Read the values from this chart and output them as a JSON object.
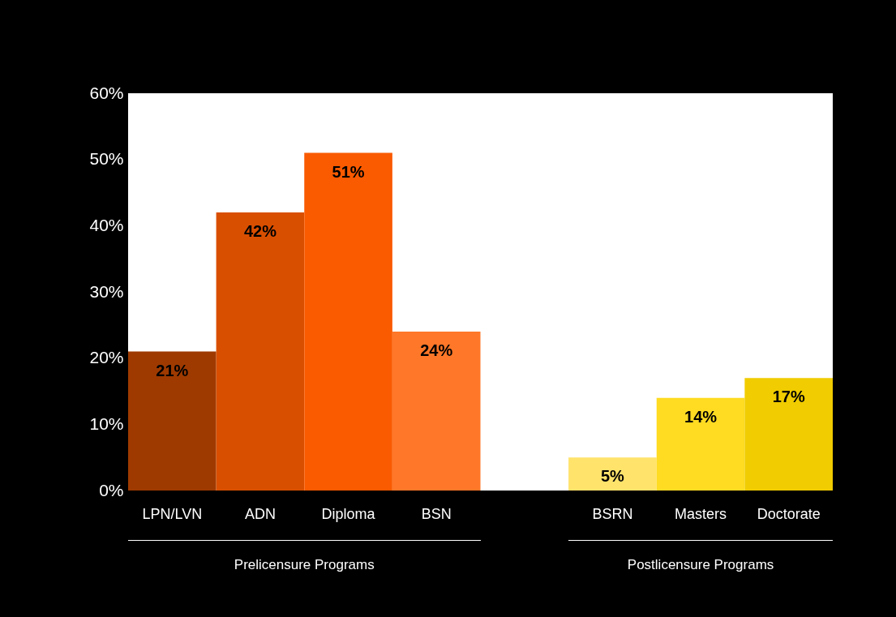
{
  "chart_data": {
    "type": "bar",
    "categories": [
      "LPN/LVN",
      "ADN",
      "Diploma",
      "BSN",
      null,
      "BSRN",
      "Masters",
      "Doctorate"
    ],
    "values": [
      21,
      42,
      51,
      24,
      null,
      5,
      14,
      17
    ],
    "colors": [
      "#9e3a00",
      "#d94f00",
      "#fa5a00",
      "#ff7728",
      null,
      "#ffe36b",
      "#ffdb22",
      "#f0cc00"
    ],
    "value_labels": [
      "21%",
      "42%",
      "51%",
      "24%",
      null,
      "5%",
      "14%",
      "17%"
    ],
    "ylim": [
      0,
      60
    ],
    "yticks": [
      {
        "value": 0,
        "label": "0%"
      },
      {
        "value": 10,
        "label": "10%"
      },
      {
        "value": 20,
        "label": "20%"
      },
      {
        "value": 30,
        "label": "30%"
      },
      {
        "value": 40,
        "label": "40%"
      },
      {
        "value": 50,
        "label": "50%"
      },
      {
        "value": 60,
        "label": "60%"
      }
    ],
    "annotations": [
      "Prelicensure Programs",
      "Postlicensure Programs"
    ]
  }
}
